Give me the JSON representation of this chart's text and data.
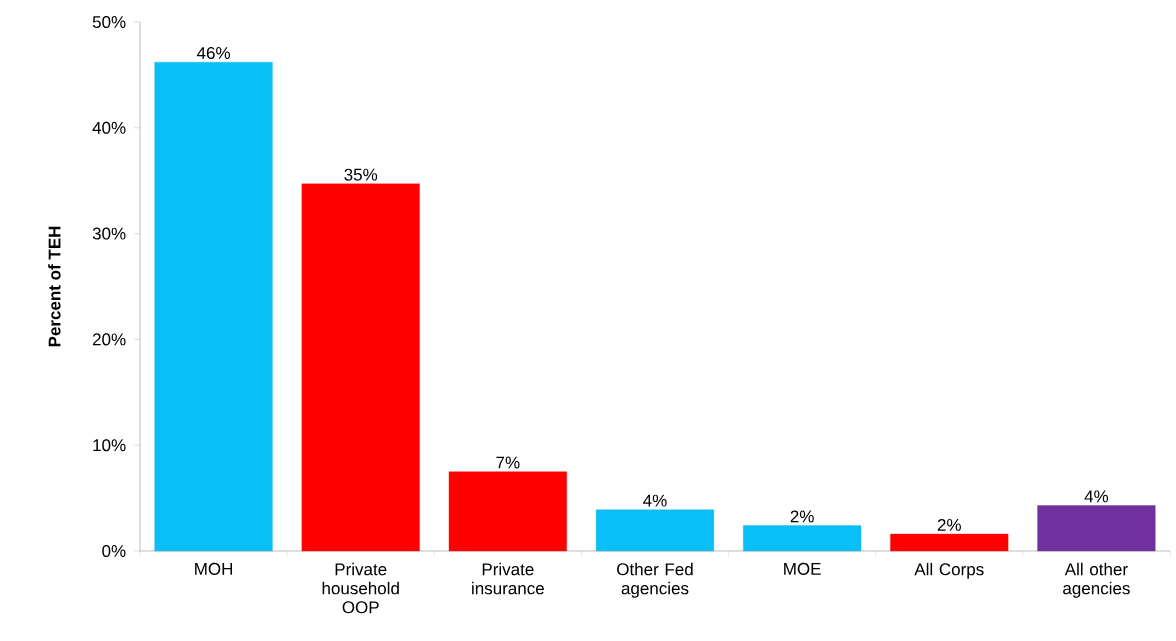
{
  "chart_data": {
    "type": "bar",
    "ylabel": "Percent of TEH",
    "categories": [
      "MOH",
      "Private household OOP",
      "Private insurance",
      "Other Fed agencies",
      "MOE",
      "All Corps",
      "All other agencies"
    ],
    "values": [
      46.2,
      34.7,
      7.5,
      3.9,
      2.4,
      1.6,
      4.3
    ],
    "value_labels": [
      "46%",
      "35%",
      "7%",
      "4%",
      "2%",
      "2%",
      "4%"
    ],
    "colors": [
      "#0abff7",
      "#ff0000",
      "#ff0000",
      "#0abff7",
      "#0abff7",
      "#ff0000",
      "#7030a0"
    ],
    "ylim": [
      0,
      50
    ],
    "yticks": [
      {
        "value": 0,
        "label": "0%"
      },
      {
        "value": 10,
        "label": "10%"
      },
      {
        "value": 20,
        "label": "20%"
      },
      {
        "value": 30,
        "label": "30%"
      },
      {
        "value": 40,
        "label": "40%"
      },
      {
        "value": 50,
        "label": "50%"
      }
    ],
    "grid": false
  }
}
